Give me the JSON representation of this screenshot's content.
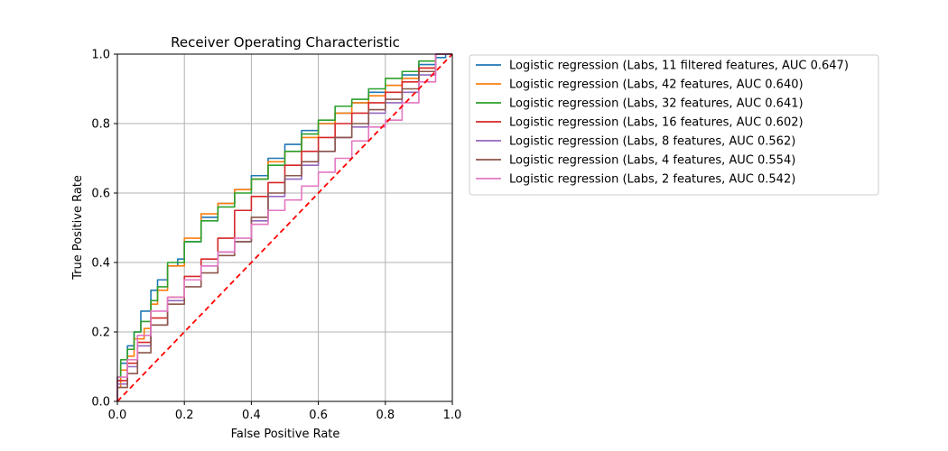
{
  "chart_data": {
    "type": "line",
    "title": "Receiver Operating Characteristic",
    "xlabel": "False Positive Rate",
    "ylabel": "True Positive Rate",
    "xlim": [
      0.0,
      1.0
    ],
    "ylim": [
      0.0,
      1.0
    ],
    "grid": true,
    "legend_position": "outside-right",
    "x_ticks": [
      "0.0",
      "0.2",
      "0.4",
      "0.6",
      "0.8",
      "1.0"
    ],
    "y_ticks": [
      "0.0",
      "0.2",
      "0.4",
      "0.6",
      "0.8",
      "1.0"
    ],
    "series": [
      {
        "name": "Logistic regression (Labs, 11 filtered features, AUC 0.647)",
        "color": "#1f77b4",
        "x": [
          0,
          0.01,
          0.03,
          0.05,
          0.07,
          0.1,
          0.12,
          0.15,
          0.18,
          0.2,
          0.25,
          0.3,
          0.35,
          0.4,
          0.45,
          0.5,
          0.55,
          0.6,
          0.65,
          0.7,
          0.75,
          0.8,
          0.85,
          0.9,
          0.95,
          0.98,
          1.0
        ],
        "y": [
          0,
          0.06,
          0.11,
          0.16,
          0.2,
          0.26,
          0.32,
          0.35,
          0.39,
          0.41,
          0.46,
          0.53,
          0.57,
          0.61,
          0.65,
          0.7,
          0.74,
          0.78,
          0.8,
          0.83,
          0.86,
          0.89,
          0.91,
          0.94,
          0.97,
          0.99,
          1.0
        ]
      },
      {
        "name": "Logistic regression (Labs, 42 features, AUC 0.640)",
        "color": "#ff7f0e",
        "x": [
          0,
          0.01,
          0.03,
          0.05,
          0.08,
          0.1,
          0.12,
          0.15,
          0.2,
          0.25,
          0.3,
          0.35,
          0.4,
          0.45,
          0.5,
          0.55,
          0.6,
          0.65,
          0.7,
          0.75,
          0.8,
          0.85,
          0.9,
          0.95,
          1.0
        ],
        "y": [
          0,
          0.04,
          0.09,
          0.13,
          0.18,
          0.21,
          0.28,
          0.32,
          0.39,
          0.47,
          0.54,
          0.57,
          0.61,
          0.64,
          0.69,
          0.72,
          0.76,
          0.8,
          0.83,
          0.86,
          0.88,
          0.91,
          0.93,
          0.96,
          1.0
        ]
      },
      {
        "name": "Logistic regression (Labs, 32 features, AUC 0.641)",
        "color": "#2ca02c",
        "x": [
          0,
          0.01,
          0.03,
          0.05,
          0.07,
          0.1,
          0.12,
          0.15,
          0.2,
          0.25,
          0.3,
          0.35,
          0.4,
          0.45,
          0.5,
          0.55,
          0.6,
          0.65,
          0.7,
          0.75,
          0.8,
          0.85,
          0.9,
          0.95,
          1.0
        ],
        "y": [
          0,
          0.07,
          0.12,
          0.15,
          0.2,
          0.23,
          0.29,
          0.33,
          0.4,
          0.46,
          0.52,
          0.56,
          0.6,
          0.64,
          0.68,
          0.72,
          0.77,
          0.81,
          0.85,
          0.87,
          0.9,
          0.93,
          0.95,
          0.98,
          1.0
        ]
      },
      {
        "name": "Logistic regression (Labs, 16 features, AUC 0.602)",
        "color": "#d62728",
        "x": [
          0,
          0.03,
          0.06,
          0.1,
          0.15,
          0.2,
          0.25,
          0.3,
          0.35,
          0.4,
          0.45,
          0.5,
          0.55,
          0.6,
          0.65,
          0.7,
          0.75,
          0.8,
          0.85,
          0.9,
          0.95,
          1.0
        ],
        "y": [
          0,
          0.06,
          0.11,
          0.17,
          0.24,
          0.3,
          0.36,
          0.41,
          0.47,
          0.55,
          0.59,
          0.63,
          0.68,
          0.72,
          0.76,
          0.8,
          0.83,
          0.86,
          0.89,
          0.92,
          0.96,
          1.0
        ]
      },
      {
        "name": "Logistic regression (Labs, 8 features, AUC 0.562)",
        "color": "#9467bd",
        "x": [
          0,
          0.03,
          0.06,
          0.1,
          0.15,
          0.2,
          0.25,
          0.3,
          0.35,
          0.4,
          0.45,
          0.5,
          0.55,
          0.6,
          0.65,
          0.7,
          0.75,
          0.8,
          0.85,
          0.9,
          0.95,
          1.0
        ],
        "y": [
          0,
          0.05,
          0.1,
          0.16,
          0.22,
          0.29,
          0.35,
          0.39,
          0.43,
          0.46,
          0.52,
          0.59,
          0.64,
          0.68,
          0.72,
          0.76,
          0.79,
          0.83,
          0.86,
          0.89,
          0.94,
          1.0
        ]
      },
      {
        "name": "Logistic regression (Labs, 4 features, AUC 0.554)",
        "color": "#8c564b",
        "x": [
          0,
          0.03,
          0.06,
          0.1,
          0.15,
          0.2,
          0.25,
          0.3,
          0.35,
          0.4,
          0.45,
          0.5,
          0.55,
          0.6,
          0.65,
          0.7,
          0.75,
          0.8,
          0.85,
          0.9,
          0.95,
          1.0
        ],
        "y": [
          0,
          0.04,
          0.08,
          0.14,
          0.22,
          0.28,
          0.33,
          0.37,
          0.42,
          0.46,
          0.53,
          0.6,
          0.65,
          0.69,
          0.72,
          0.76,
          0.8,
          0.84,
          0.87,
          0.9,
          0.95,
          1.0
        ]
      },
      {
        "name": "Logistic regression (Labs, 2 features, AUC 0.542)",
        "color": "#e377c2",
        "x": [
          0,
          0.03,
          0.06,
          0.1,
          0.15,
          0.2,
          0.25,
          0.3,
          0.35,
          0.4,
          0.45,
          0.5,
          0.55,
          0.6,
          0.65,
          0.7,
          0.75,
          0.8,
          0.85,
          0.9,
          0.95,
          1.0
        ],
        "y": [
          0,
          0.07,
          0.12,
          0.19,
          0.26,
          0.3,
          0.35,
          0.39,
          0.43,
          0.47,
          0.51,
          0.55,
          0.58,
          0.62,
          0.66,
          0.7,
          0.75,
          0.79,
          0.81,
          0.86,
          0.92,
          1.0
        ]
      }
    ],
    "reference_line": {
      "x": [
        0,
        1
      ],
      "y": [
        0,
        1
      ],
      "color": "#ff0000",
      "style": "dashed"
    }
  }
}
